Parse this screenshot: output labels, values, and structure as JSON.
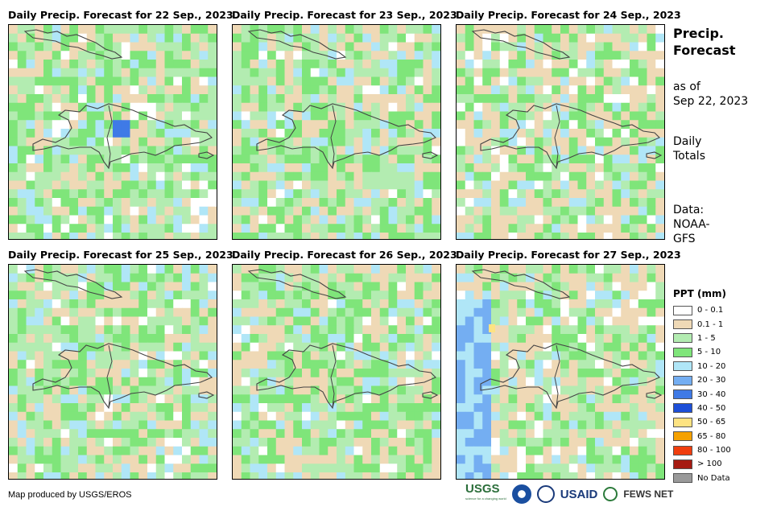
{
  "panels": [
    {
      "title": "Daily Precip. Forecast for 22 Sep., 2023",
      "seed": 11,
      "profile": "d22"
    },
    {
      "title": "Daily Precip. Forecast for 23 Sep., 2023",
      "seed": 23,
      "profile": "d23"
    },
    {
      "title": "Daily Precip. Forecast for 24 Sep., 2023",
      "seed": 37,
      "profile": "d24"
    },
    {
      "title": "Daily Precip. Forecast for 25 Sep., 2023",
      "seed": 41,
      "profile": "d25"
    },
    {
      "title": "Daily Precip. Forecast for 26 Sep., 2023",
      "seed": 53,
      "profile": "d26"
    },
    {
      "title": "Daily Precip. Forecast for 27 Sep., 2023",
      "seed": 67,
      "profile": "d27"
    }
  ],
  "sidebar": {
    "title_line1": "Precip.",
    "title_line2": "Forecast",
    "asof_line1": "as of",
    "asof_line2": "Sep 22, 2023",
    "totals_line1": "Daily",
    "totals_line2": "Totals",
    "data_line1": "Data:",
    "data_line2": "NOAA-",
    "data_line3": "GFS"
  },
  "legend": {
    "title": "PPT (mm)",
    "items": [
      {
        "label": "0 - 0.1",
        "color": "#ffffff"
      },
      {
        "label": "0.1 - 1",
        "color": "#efd9b6"
      },
      {
        "label": "1 - 5",
        "color": "#b3ecb1"
      },
      {
        "label": "5 - 10",
        "color": "#7fe57a"
      },
      {
        "label": "10 - 20",
        "color": "#b0e6f7"
      },
      {
        "label": "20 - 30",
        "color": "#74aef2"
      },
      {
        "label": "30 - 40",
        "color": "#3f7ae6"
      },
      {
        "label": "40 - 50",
        "color": "#1d4fd8"
      },
      {
        "label": "50 - 65",
        "color": "#fde382"
      },
      {
        "label": "65 - 80",
        "color": "#f5a100"
      },
      {
        "label": "80 - 100",
        "color": "#f03e0e"
      },
      {
        "label": "> 100",
        "color": "#a61b12"
      },
      {
        "label": "No Data",
        "color": "#9a9a9a"
      }
    ]
  },
  "credit": "Map produced by USGS/EROS",
  "logos": {
    "usgs": "USGS",
    "usgs_sub": "science for a changing world",
    "usaid": "USAID",
    "famine": "FEWS NET"
  }
}
